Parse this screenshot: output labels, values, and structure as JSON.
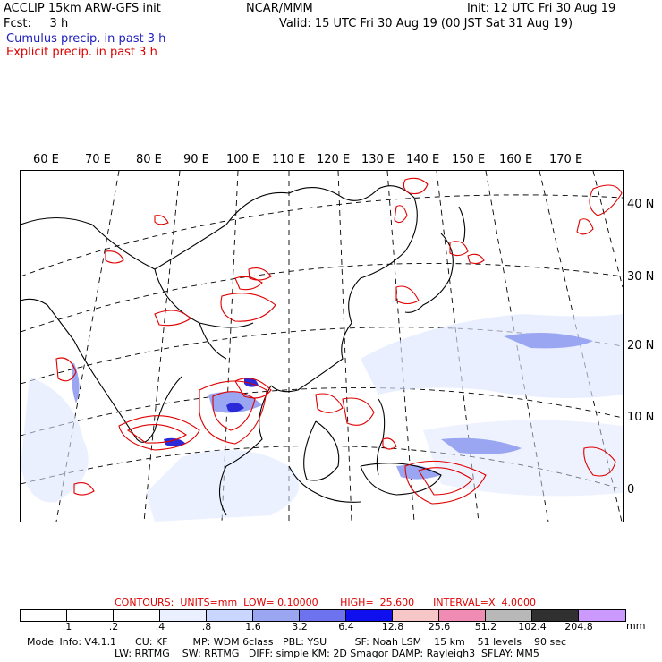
{
  "header": {
    "line1_left": "ACCLIP 15km ARW-GFS init",
    "line1_center": "NCAR/MMM",
    "line1_right": "Init: 12 UTC Fri 30 Aug 19",
    "line2_left": "Fcst:     3 h",
    "line2_right": "Valid: 15 UTC Fri 30 Aug 19 (00 JST Sat 31 Aug 19)",
    "legend_cumulus": "Cumulus precip. in past 3 h",
    "legend_explicit": "Explicit precip. in past 3 h"
  },
  "map": {
    "lon_labels": [
      "60 E",
      "70 E",
      "80 E",
      "90 E",
      "100 E",
      "110 E",
      "120 E",
      "130 E",
      "140 E",
      "150 E",
      "160 E",
      "170 E"
    ],
    "lat_labels": [
      "40 N",
      "30 N",
      "20 N",
      "10 N",
      "0"
    ]
  },
  "contours": {
    "label": "CONTOURS:  UNITS=mm  LOW= 0.10000       HIGH=  25.600      INTERVAL=X  4.0000"
  },
  "colorbar": {
    "ticks": [
      ".1",
      ".2",
      ".4",
      ".8",
      "1.6",
      "3.2",
      "6.4",
      "12.8",
      "25.6",
      "51.2",
      "102.4",
      "204.8"
    ],
    "units": "mm",
    "colors": [
      "#ffffff",
      "#ffffff",
      "#ffffff",
      "#eaf0ff",
      "#c9d6ff",
      "#9aa6f2",
      "#6d72ee",
      "#1010ee",
      "#f7c6c6",
      "#f08cb4",
      "#b8b8b8",
      "#303030",
      "#cc99ff"
    ]
  },
  "footer": {
    "line1": "Model Info: V4.1.1      CU: KF        MP: WDM 6class   PBL: YSU         SF: Noah LSM    15 km    51 levels    90 sec",
    "line2": "LW: RRTMG    SW: RRTMG   DIFF: simple KM: 2D Smagor DAMP: Rayleigh3  SFLAY: MM5"
  }
}
